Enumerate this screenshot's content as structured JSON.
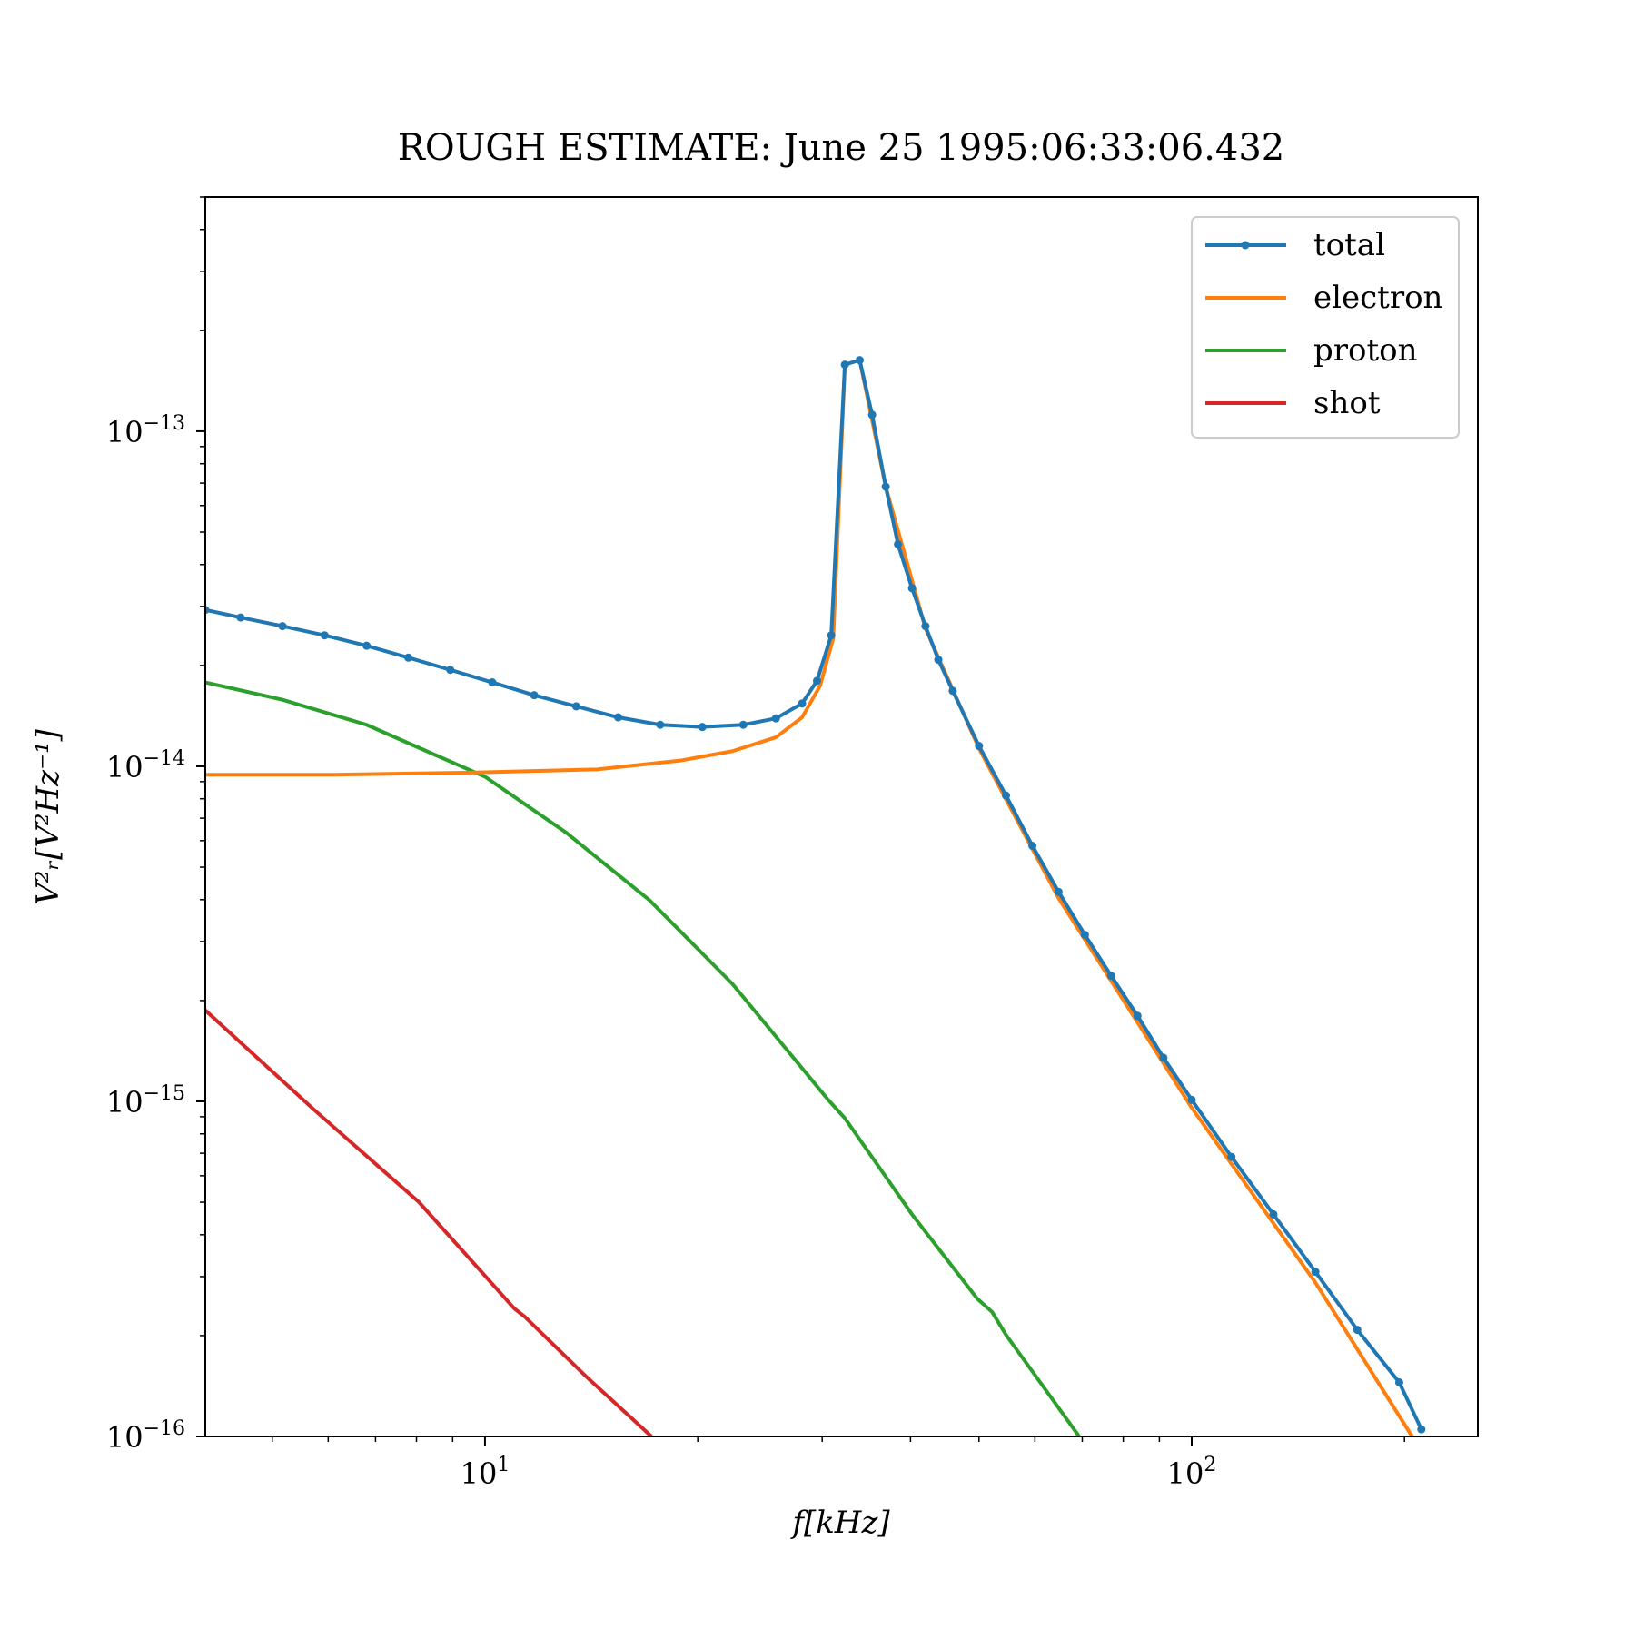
{
  "chart_data": {
    "type": "line",
    "title": "ROUGH ESTIMATE: June 25 1995:06:33:06.432",
    "x_label": "f[kHz]",
    "y_label": "V²ᵣ[V²Hz⁻¹]",
    "xscale": "log",
    "yscale": "log",
    "xlim": [
      4.02,
      254
    ],
    "ylim": [
      1e-16,
      5e-13
    ],
    "xticks": [
      {
        "value": 10,
        "label": "10^1"
      },
      {
        "value": 100,
        "label": "10^2"
      }
    ],
    "yticks": [
      {
        "value": 1e-16,
        "label": "10^−16"
      },
      {
        "value": 1e-15,
        "label": "10^−15"
      },
      {
        "value": 1e-14,
        "label": "10^−14"
      },
      {
        "value": 1e-13,
        "label": "10^−13"
      }
    ],
    "legend": "upper right",
    "series": [
      {
        "name": "total",
        "color": "#1f77b4",
        "marker": true,
        "x": [
          4.02,
          4.51,
          5.17,
          5.93,
          6.8,
          7.79,
          8.93,
          10.24,
          11.74,
          13.46,
          15.43,
          17.7,
          20.3,
          23.2,
          25.8,
          28.1,
          29.5,
          30.9,
          32.3,
          33.9,
          35.3,
          36.9,
          38.4,
          40.2,
          42.0,
          43.8,
          45.9,
          50.0,
          54.6,
          59.5,
          64.8,
          70.6,
          76.9,
          83.8,
          91.2,
          100,
          113.8,
          130.5,
          149.6,
          171.5,
          196.6,
          211.3
        ],
        "values": [
          2.93e-14,
          2.78e-14,
          2.62e-14,
          2.46e-14,
          2.29e-14,
          2.11e-14,
          1.94e-14,
          1.78e-14,
          1.63e-14,
          1.51e-14,
          1.4e-14,
          1.33e-14,
          1.31e-14,
          1.33e-14,
          1.39e-14,
          1.54e-14,
          1.8e-14,
          2.46e-14,
          1.58e-13,
          1.63e-13,
          1.12e-13,
          6.83e-14,
          4.6e-14,
          3.4e-14,
          2.62e-14,
          2.08e-14,
          1.68e-14,
          1.15e-14,
          8.18e-15,
          5.79e-15,
          4.22e-15,
          3.14e-15,
          2.37e-15,
          1.8e-15,
          1.35e-15,
          1.01e-15,
          6.83e-16,
          4.6e-16,
          3.1e-16,
          2.08e-16,
          1.45e-16,
          1.05e-16
        ]
      },
      {
        "name": "electron",
        "color": "#ff7f0e",
        "marker": false,
        "x": [
          4.02,
          6.13,
          9.57,
          14.4,
          18.9,
          22.4,
          25.8,
          28.1,
          29.8,
          31.1,
          32.3,
          33.9,
          36.9,
          42.0,
          50.0,
          64.8,
          100,
          149.6,
          205
        ],
        "values": [
          9.44e-15,
          9.44e-15,
          9.58e-15,
          9.79e-15,
          1.04e-14,
          1.11e-14,
          1.22e-14,
          1.4e-14,
          1.74e-14,
          2.41e-14,
          1.58e-13,
          1.63e-13,
          6.83e-14,
          2.58e-14,
          1.13e-14,
          4.04e-15,
          9.57e-16,
          2.88e-16,
          1e-16
        ]
      },
      {
        "name": "proton",
        "color": "#2ca02c",
        "marker": false,
        "x": [
          4.02,
          5.17,
          6.8,
          8.6,
          10,
          13.0,
          17.1,
          22.4,
          30.6,
          32.3,
          40.2,
          49.7,
          52.2,
          54.6,
          69.3
        ],
        "values": [
          1.78e-14,
          1.58e-14,
          1.33e-14,
          1.07e-14,
          9.31e-15,
          6.36e-15,
          3.98e-15,
          2.24e-15,
          1.01e-15,
          8.91e-16,
          4.6e-16,
          2.58e-16,
          2.35e-16,
          2.01e-16,
          1e-16
        ]
      },
      {
        "name": "shot",
        "color": "#d62728",
        "marker": false,
        "x": [
          4.02,
          5.73,
          8.06,
          11.0,
          11.4,
          13.9,
          17.2
        ],
        "values": [
          1.87e-15,
          9.44e-16,
          5.01e-16,
          2.41e-16,
          2.27e-16,
          1.51e-16,
          1e-16
        ]
      }
    ]
  }
}
